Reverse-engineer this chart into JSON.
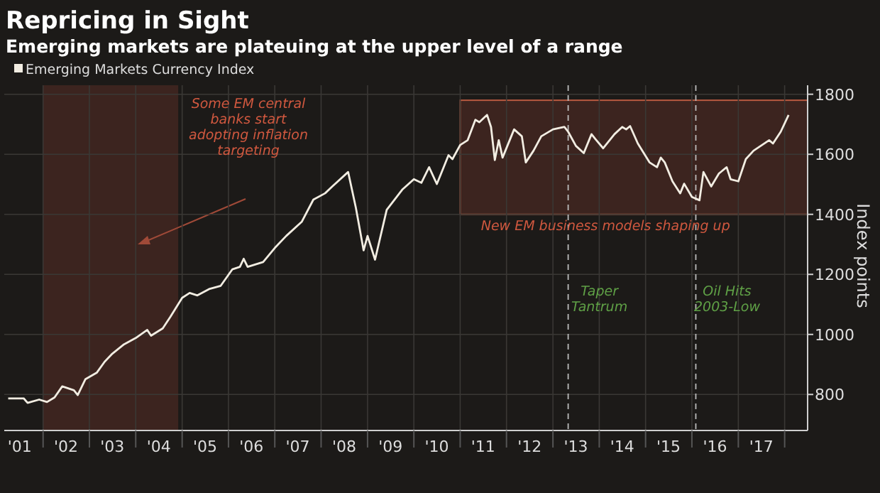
{
  "chart_data": {
    "type": "line",
    "title": "Repricing in Sight",
    "subtitle": "Emerging markets are plateuing at the upper level of a range",
    "ylabel": "Index points",
    "x": [
      "2001-04",
      "2001-08",
      "2001-09",
      "2001-12",
      "2002-02",
      "2002-04",
      "2002-06",
      "2002-09",
      "2002-10",
      "2002-12",
      "2003-03",
      "2003-05",
      "2003-07",
      "2003-10",
      "2004-01",
      "2004-04",
      "2004-05",
      "2004-08",
      "2004-10",
      "2005-01",
      "2005-03",
      "2005-05",
      "2005-08",
      "2005-11",
      "2006-02",
      "2006-04",
      "2006-05",
      "2006-06",
      "2006-10",
      "2007-01",
      "2007-04",
      "2007-08",
      "2007-11",
      "2008-02",
      "2008-04",
      "2008-08",
      "2008-10",
      "2008-12",
      "2009-01",
      "2009-03",
      "2009-06",
      "2009-10",
      "2010-01",
      "2010-03",
      "2010-05",
      "2010-07",
      "2010-08",
      "2010-10",
      "2010-11",
      "2011-01",
      "2011-03",
      "2011-05",
      "2011-06",
      "2011-08",
      "2011-09",
      "2011-10",
      "2011-11",
      "2011-12",
      "2012-03",
      "2012-05",
      "2012-06",
      "2012-08",
      "2012-10",
      "2013-01",
      "2013-04",
      "2013-05",
      "2013-07",
      "2013-09",
      "2013-11",
      "2013-12",
      "2014-02",
      "2014-05",
      "2014-07",
      "2014-08",
      "2014-09",
      "2014-11",
      "2015-02",
      "2015-04",
      "2015-05",
      "2015-06",
      "2015-08",
      "2015-10",
      "2015-11",
      "2016-01",
      "2016-03",
      "2016-04",
      "2016-06",
      "2016-08",
      "2016-10",
      "2016-11",
      "2017-01",
      "2017-03",
      "2017-05",
      "2017-09",
      "2017-10",
      "2017-12",
      "2018-02"
    ],
    "series": [
      {
        "name": "Emerging Markets Currency Index",
        "color": "#f2ede2",
        "values": [
          787,
          787,
          772,
          783,
          775,
          790,
          827,
          814,
          798,
          851,
          873,
          909,
          936,
          967,
          988,
          1015,
          996,
          1020,
          1059,
          1122,
          1138,
          1130,
          1151,
          1162,
          1217,
          1225,
          1252,
          1225,
          1241,
          1288,
          1328,
          1375,
          1449,
          1470,
          1494,
          1541,
          1422,
          1280,
          1328,
          1249,
          1415,
          1482,
          1517,
          1505,
          1557,
          1501,
          1533,
          1597,
          1584,
          1631,
          1647,
          1715,
          1707,
          1731,
          1691,
          1581,
          1647,
          1589,
          1683,
          1660,
          1573,
          1612,
          1660,
          1683,
          1691,
          1675,
          1628,
          1604,
          1667,
          1651,
          1620,
          1667,
          1691,
          1683,
          1694,
          1636,
          1573,
          1557,
          1589,
          1573,
          1510,
          1470,
          1502,
          1458,
          1447,
          1541,
          1493,
          1536,
          1557,
          1517,
          1510,
          1584,
          1612,
          1647,
          1636,
          1675,
          1731
        ]
      }
    ],
    "xlim": [
      "2001-03",
      "2018-07"
    ],
    "xticks": [
      {
        "value": "2001-07",
        "label": "'01"
      },
      {
        "value": "2002-01",
        "label": null
      },
      {
        "value": "2002-07",
        "label": "'02"
      },
      {
        "value": "2003-01",
        "label": null
      },
      {
        "value": "2003-07",
        "label": "'03"
      },
      {
        "value": "2004-01",
        "label": null
      },
      {
        "value": "2004-07",
        "label": "'04"
      },
      {
        "value": "2005-01",
        "label": null
      },
      {
        "value": "2005-07",
        "label": "'05"
      },
      {
        "value": "2006-01",
        "label": null
      },
      {
        "value": "2006-07",
        "label": "'06"
      },
      {
        "value": "2007-01",
        "label": null
      },
      {
        "value": "2007-07",
        "label": "'07"
      },
      {
        "value": "2008-01",
        "label": null
      },
      {
        "value": "2008-07",
        "label": "'08"
      },
      {
        "value": "2009-01",
        "label": null
      },
      {
        "value": "2009-07",
        "label": "'09"
      },
      {
        "value": "2010-01",
        "label": null
      },
      {
        "value": "2010-07",
        "label": "'10"
      },
      {
        "value": "2011-01",
        "label": null
      },
      {
        "value": "2011-07",
        "label": "'11"
      },
      {
        "value": "2012-01",
        "label": null
      },
      {
        "value": "2012-07",
        "label": "'12"
      },
      {
        "value": "2013-01",
        "label": null
      },
      {
        "value": "2013-07",
        "label": "'13"
      },
      {
        "value": "2014-01",
        "label": null
      },
      {
        "value": "2014-07",
        "label": "'14"
      },
      {
        "value": "2015-01",
        "label": null
      },
      {
        "value": "2015-07",
        "label": "'15"
      },
      {
        "value": "2016-01",
        "label": null
      },
      {
        "value": "2016-07",
        "label": "'16"
      },
      {
        "value": "2017-01",
        "label": null
      },
      {
        "value": "2017-07",
        "label": "'17"
      },
      {
        "value": "2018-01",
        "label": null
      }
    ],
    "ylim": [
      680,
      1830
    ],
    "yticks": [
      800,
      1000,
      1200,
      1400,
      1600,
      1800
    ],
    "grid": true,
    "legend": "top left",
    "bands": [
      {
        "axis": "x",
        "from": "2002-01",
        "to": "2004-12",
        "label": "Some EM central banks start adopting inflation targeting",
        "color": "#4a2a22"
      },
      {
        "axis": "y",
        "from": 1400,
        "to": 1780,
        "color": "#4a2a22"
      }
    ],
    "annotations": [
      {
        "text": "New EM business models shaping up",
        "x": "2011-01",
        "y": 1400
      }
    ],
    "ref_lines": [
      {
        "axis": "x",
        "value": "2013-05",
        "label": "Taper Tantrum",
        "line_style": "dashed"
      },
      {
        "axis": "x",
        "value": "2016-02",
        "label": "Oil Hits 2003-Low",
        "line_style": "dashed"
      }
    ]
  }
}
